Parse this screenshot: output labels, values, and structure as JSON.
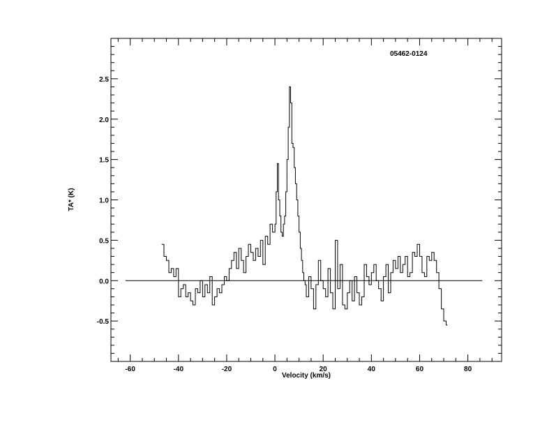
{
  "chart_data": {
    "type": "line",
    "title": "05462-0124",
    "xlabel": "Velocity (km/s)",
    "ylabel": "TA* (K)",
    "xlim": [
      -68,
      94
    ],
    "ylim": [
      -1.0,
      3.0
    ],
    "xticks": [
      -60,
      -40,
      -20,
      0,
      20,
      40,
      60,
      80
    ],
    "xtick_labels": [
      "-60",
      "-40",
      "-20",
      "0",
      "20",
      "40",
      "60",
      "80"
    ],
    "yticks": [
      -0.5,
      0.0,
      0.5,
      1.0,
      1.5,
      2.0,
      2.5
    ],
    "ytick_labels": [
      "-0.5",
      "0.0",
      "0.5",
      "1.0",
      "1.5",
      "2.0",
      "2.5"
    ],
    "baseline": {
      "y": 0.0,
      "x_range": [
        -62,
        86
      ]
    },
    "series": [
      {
        "step": true,
        "x": [
          -47.0,
          -46.0,
          -45.0,
          -44.0,
          -43.0,
          -42.0,
          -41.0,
          -40.0,
          -39.0,
          -38.0,
          -37.0,
          -36.0,
          -35.0,
          -34.0,
          -33.0,
          -32.0,
          -31.0,
          -30.0,
          -29.0,
          -28.0,
          -27.0,
          -26.0,
          -25.0,
          -24.0,
          -23.0,
          -22.0,
          -21.0,
          -20.0,
          -19.0,
          -18.0,
          -17.0,
          -16.0,
          -15.0,
          -14.0,
          -13.0,
          -12.0,
          -11.0,
          -10.0,
          -9.0,
          -8.0,
          -7.0,
          -6.0,
          -5.0,
          -4.0,
          -3.0,
          -2.0,
          -1.0,
          0.0,
          0.5,
          1.0,
          1.5,
          2.0,
          2.5,
          3.0,
          3.5,
          4.0,
          4.5,
          5.0,
          5.5,
          6.0,
          6.5,
          7.0,
          7.5,
          8.0,
          8.5,
          9.0,
          9.5,
          10.0,
          10.5,
          11.0,
          11.5,
          12.0,
          12.5,
          13.0,
          14.0,
          15.0,
          16.0,
          17.0,
          18.0,
          19.0,
          20.0,
          21.0,
          22.0,
          23.0,
          24.0,
          25.0,
          26.0,
          27.0,
          28.0,
          29.0,
          30.0,
          31.0,
          32.0,
          33.0,
          34.0,
          35.0,
          36.0,
          37.0,
          38.0,
          39.0,
          40.0,
          41.0,
          42.0,
          43.0,
          44.0,
          45.0,
          46.0,
          47.0,
          48.0,
          49.0,
          50.0,
          51.0,
          52.0,
          53.0,
          54.0,
          55.0,
          56.0,
          57.0,
          58.0,
          59.0,
          60.0,
          61.0,
          62.0,
          63.0,
          64.0,
          65.0,
          66.0,
          67.0,
          68.0,
          69.0,
          70.0,
          71.0
        ],
        "y": [
          0.45,
          0.3,
          0.25,
          0.1,
          0.15,
          0.05,
          0.15,
          -0.2,
          -0.1,
          -0.05,
          -0.2,
          -0.15,
          -0.25,
          -0.3,
          -0.1,
          -0.15,
          0.0,
          -0.2,
          -0.05,
          -0.15,
          0.05,
          -0.3,
          -0.2,
          -0.1,
          -0.15,
          -0.05,
          0.05,
          0.0,
          0.15,
          0.25,
          0.35,
          0.15,
          0.4,
          0.25,
          0.1,
          0.3,
          0.45,
          0.35,
          0.25,
          0.4,
          0.3,
          0.5,
          0.2,
          0.55,
          0.45,
          0.7,
          0.6,
          0.7,
          1.1,
          1.45,
          1.0,
          0.8,
          0.6,
          0.55,
          0.7,
          0.8,
          1.1,
          1.5,
          1.9,
          2.4,
          2.2,
          1.7,
          1.65,
          1.4,
          1.2,
          1.0,
          0.8,
          0.6,
          0.4,
          0.25,
          0.1,
          0.0,
          -0.05,
          -0.2,
          0.05,
          -0.1,
          -0.35,
          -0.05,
          0.25,
          0.0,
          -0.1,
          -0.2,
          0.15,
          -0.15,
          -0.35,
          0.5,
          -0.1,
          0.2,
          -0.3,
          -0.35,
          -0.15,
          0.0,
          -0.25,
          0.05,
          -0.15,
          -0.3,
          -0.2,
          0.2,
          0.05,
          -0.05,
          0.1,
          0.2,
          0.0,
          -0.1,
          -0.25,
          0.05,
          0.2,
          -0.15,
          0.1,
          0.25,
          0.15,
          0.3,
          0.1,
          0.2,
          0.3,
          0.05,
          0.1,
          0.35,
          0.3,
          0.45,
          0.3,
          0.1,
          0.05,
          0.3,
          0.25,
          0.35,
          0.25,
          0.1,
          -0.1,
          -0.35,
          -0.5,
          -0.55
        ]
      }
    ]
  }
}
